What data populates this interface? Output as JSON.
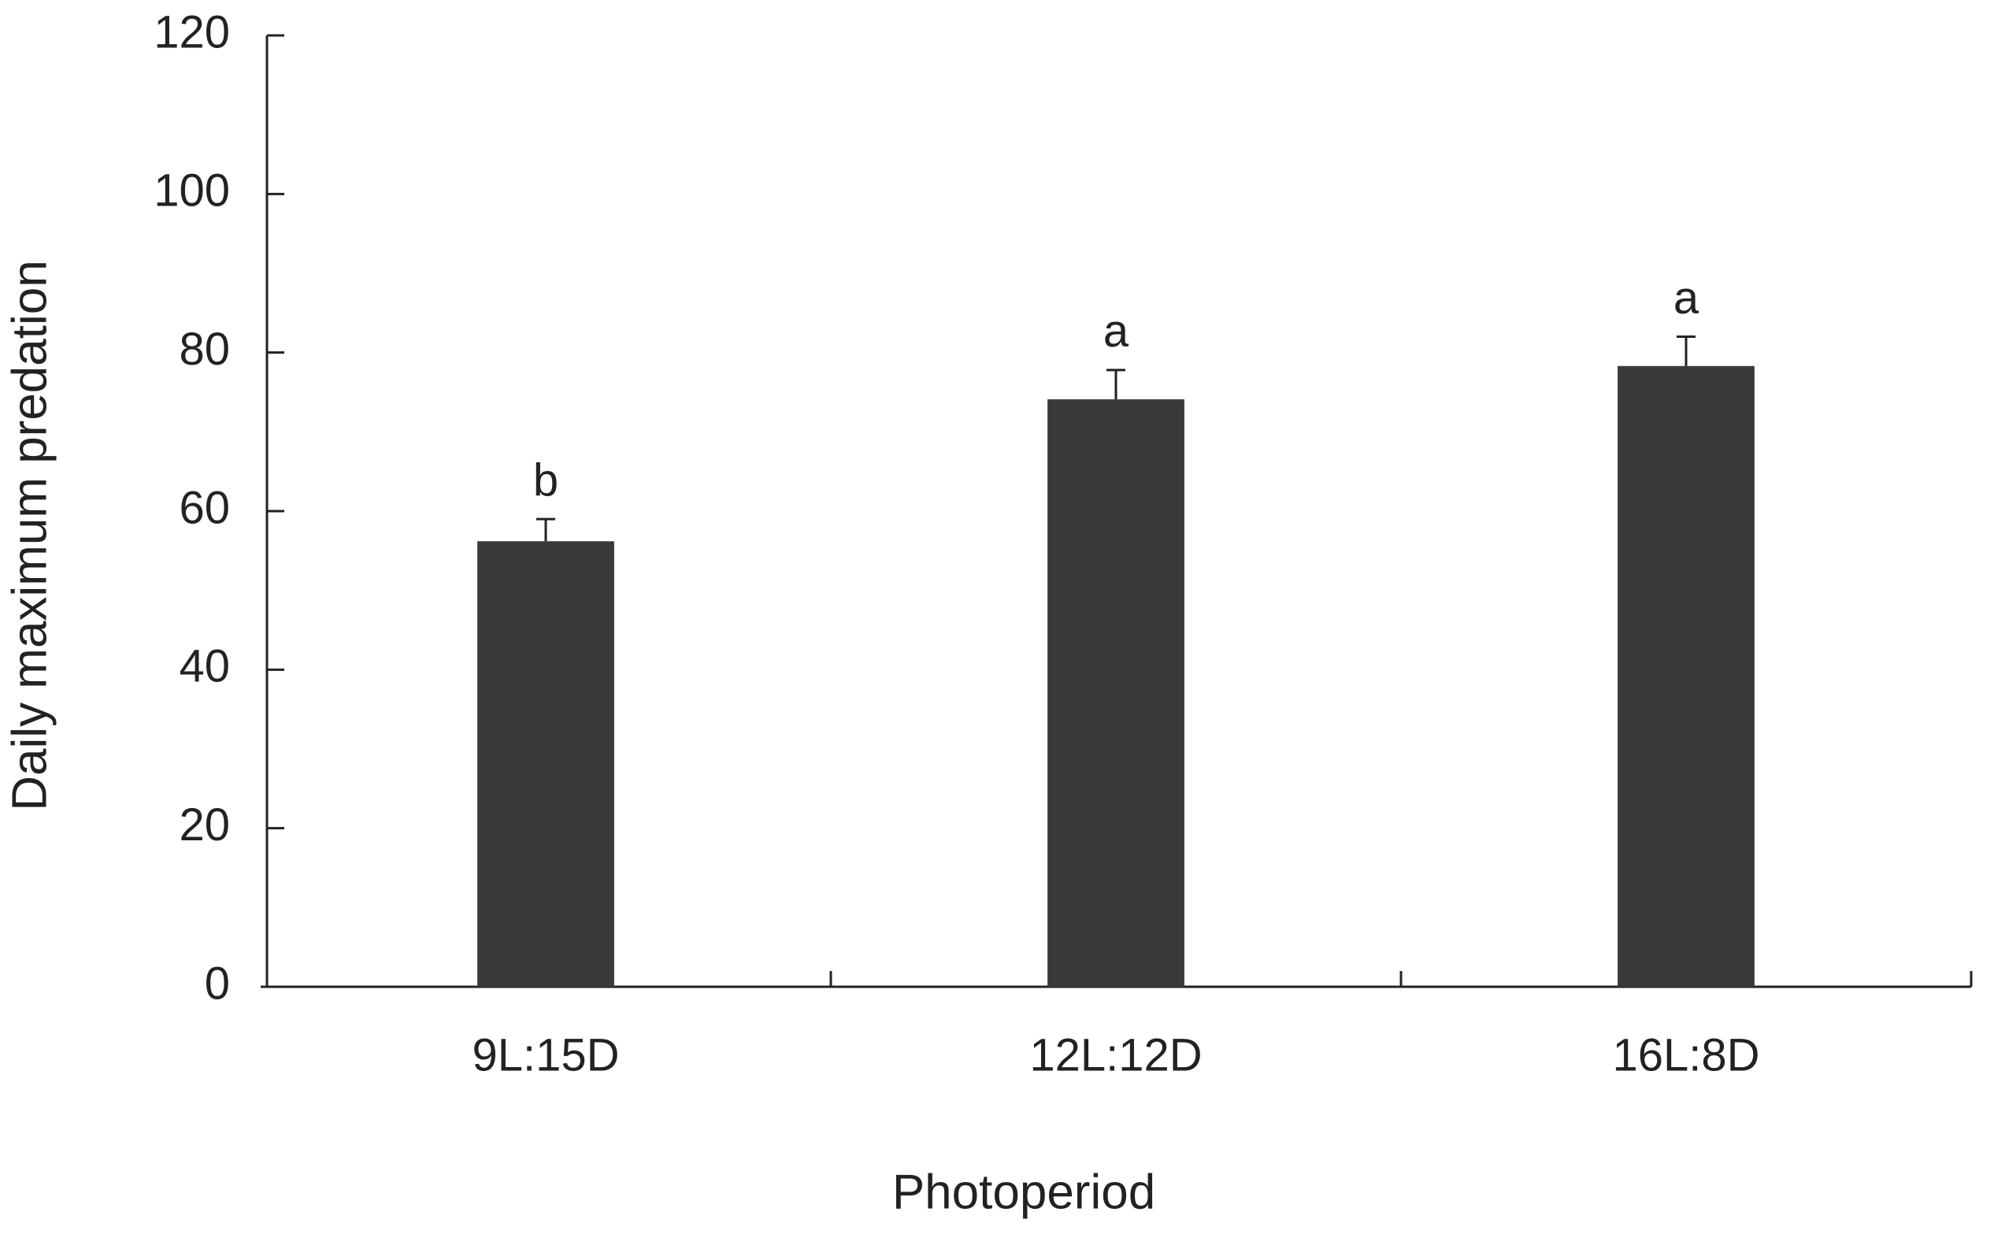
{
  "chart_data": {
    "type": "bar",
    "x_label": "Photoperiod",
    "y_label": "Daily maximum predation",
    "categories": [
      "9L:15D",
      "12L:12D",
      "16L:8D"
    ],
    "values": [
      56.2,
      74.1,
      78.3
    ],
    "errors": [
      2.8,
      3.7,
      3.7
    ],
    "significance_letters": [
      "b",
      "a",
      "a"
    ],
    "color": "#3a3a3a",
    "ylim": [
      0,
      120
    ],
    "yticks": [
      0,
      20,
      40,
      60,
      80,
      100,
      120
    ],
    "grid": false
  }
}
